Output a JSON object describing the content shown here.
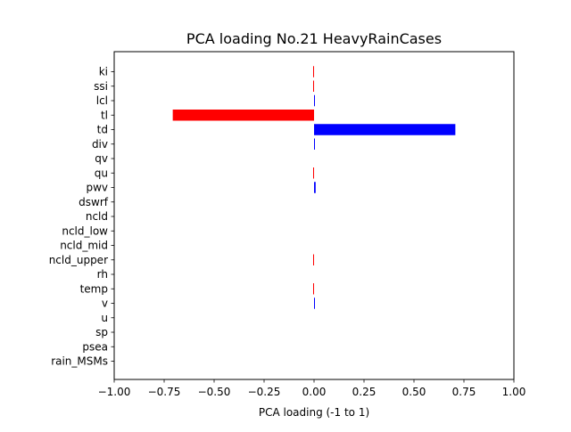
{
  "chart_data": {
    "type": "bar",
    "orientation": "horizontal",
    "title": "PCA loading No.21 HeavyRainCases",
    "xlabel": "PCA loading (-1 to 1)",
    "ylabel": "",
    "xlim": [
      -1.0,
      1.0
    ],
    "xticks": [
      -1.0,
      -0.75,
      -0.5,
      -0.25,
      0.0,
      0.25,
      0.5,
      0.75,
      1.0
    ],
    "xtick_labels": [
      "−1.00",
      "−0.75",
      "−0.50",
      "−0.25",
      "0.00",
      "0.25",
      "0.50",
      "0.75",
      "1.00"
    ],
    "grid": false,
    "positive_color": "#0000ff",
    "negative_color": "#ff0000",
    "categories": [
      "ki",
      "ssi",
      "lcl",
      "tl",
      "td",
      "div",
      "qv",
      "qu",
      "pwv",
      "dswrf",
      "ncld",
      "ncld_low",
      "ncld_mid",
      "ncld_upper",
      "rh",
      "temp",
      "v",
      "u",
      "sp",
      "psea",
      "rain_MSMs"
    ],
    "values": [
      -0.002,
      -0.002,
      0.003,
      -0.707,
      0.707,
      0.003,
      0.0,
      -0.002,
      0.008,
      0.0,
      0.0,
      0.0,
      0.0,
      -0.002,
      0.0,
      -0.002,
      0.002,
      0.0,
      0.0,
      0.0,
      0.0
    ]
  }
}
